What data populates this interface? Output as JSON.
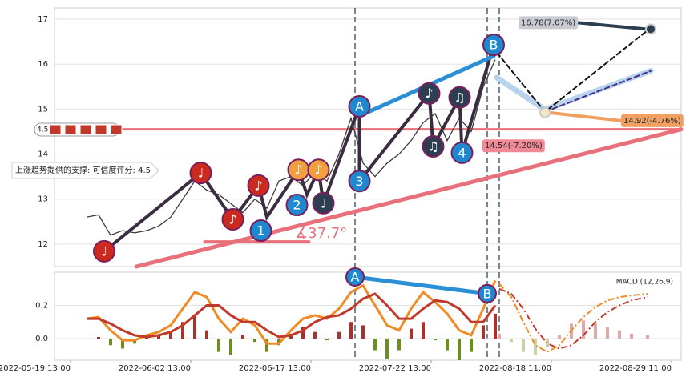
{
  "chart_data": [
    {
      "type": "line",
      "x": [
        4,
        7,
        10,
        13,
        16,
        19,
        22,
        25,
        28,
        31,
        34,
        37,
        40,
        43,
        46,
        49,
        52,
        55,
        58,
        61,
        64,
        67,
        70,
        73,
        76,
        79,
        82,
        85,
        88,
        91,
        94,
        97,
        100,
        103,
        106
      ],
      "values": [
        12.6,
        12.65,
        12.2,
        12.3,
        12.25,
        12.3,
        12.4,
        12.6,
        13.0,
        13.4,
        13.2,
        13.1,
        12.9,
        12.7,
        13.0,
        12.8,
        13.4,
        13.5,
        13.3,
        13.6,
        13.4,
        14.0,
        14.8,
        13.8,
        13.5,
        13.8,
        14.0,
        14.3,
        14.7,
        14.9,
        14.3,
        14.8,
        14.5,
        15.5,
        16.1
      ],
      "color": "#3a3a3a",
      "xlim": [
        -4,
        152.4
      ],
      "ylim": [
        11.5,
        17.25
      ],
      "yticks": [
        12,
        13,
        14,
        15,
        16,
        17
      ],
      "grid": true,
      "hlines": [
        {
          "y": 14.55,
          "color": "#e8707a"
        }
      ],
      "vlines": [
        71,
        104,
        107
      ],
      "trendlines": [
        {
          "x": [
            16.4,
            152.4
          ],
          "y": [
            11.5,
            14.55
          ],
          "color": "#e8707a",
          "width": 5
        },
        {
          "x": [
            33.5,
            59.5
          ],
          "y": [
            12.05,
            12.05
          ],
          "color": "#e8707a",
          "width": 4
        },
        {
          "x": [
            106.4,
            118.4,
            144.8
          ],
          "y": [
            15.7,
            14.99,
            15.85
          ],
          "color": "#b8d3ee",
          "width": 7
        },
        {
          "x": [
            8.4,
            32.5,
            40.5,
            46.9,
            49,
            56.9,
            59,
            61.9,
            63.1,
            72.1,
            72.1,
            89.5,
            90.5,
            97.1,
            97.7,
            105.6
          ],
          "y": [
            11.84,
            13.58,
            12.55,
            13.3,
            12.6,
            13.65,
            13.1,
            13.65,
            12.91,
            15.06,
            13.4,
            15.35,
            14.17,
            15.26,
            14.03,
            16.43
          ],
          "color": "#3a2d40",
          "width": 4
        },
        {
          "x": [
            72.1,
            105.6
          ],
          "y": [
            14.85,
            16.18
          ],
          "color": "#2b8fd6",
          "width": 5
        },
        {
          "x": [
            106.4,
            118.4,
            144.4
          ],
          "y": [
            16.26,
            14.94,
            16.78
          ],
          "color": "#111111",
          "width": 2,
          "dash": true
        },
        {
          "x": [
            118.4,
            144.8
          ],
          "y": [
            14.94,
            15.85
          ],
          "color": "#4b2c8a",
          "width": 2,
          "dash": true
        }
      ],
      "markers": [
        {
          "label": "♩",
          "x": 8.4,
          "y": 11.84,
          "color": "#cc2a1f"
        },
        {
          "label": "♩",
          "x": 32.5,
          "y": 13.58,
          "color": "#cc2a1f"
        },
        {
          "label": "♪",
          "x": 40.5,
          "y": 12.55,
          "color": "#cc2a1f"
        },
        {
          "label": "♪",
          "x": 46.9,
          "y": 13.3,
          "color": "#cc2a1f"
        },
        {
          "label": "♪",
          "x": 56.9,
          "y": 13.65,
          "color": "#f0a040"
        },
        {
          "label": "♪",
          "x": 61.9,
          "y": 13.65,
          "color": "#f0a040"
        },
        {
          "label": "♩",
          "x": 63.1,
          "y": 12.91,
          "color": "#2c3e50"
        },
        {
          "label": "♪",
          "x": 89.5,
          "y": 15.35,
          "color": "#2c3e50"
        },
        {
          "label": "♫",
          "x": 90.5,
          "y": 14.17,
          "color": "#2c3e50"
        },
        {
          "label": "♫",
          "x": 97.1,
          "y": 15.26,
          "color": "#2c3e50"
        },
        {
          "label": "1",
          "x": 47.5,
          "y": 12.3,
          "color": "#1e88d0"
        },
        {
          "label": "2",
          "x": 56.5,
          "y": 12.87,
          "color": "#1e88d0"
        },
        {
          "label": "3",
          "x": 72.1,
          "y": 13.4,
          "color": "#1e88d0"
        },
        {
          "label": "4",
          "x": 97.7,
          "y": 14.03,
          "color": "#1e88d0"
        },
        {
          "label": "A",
          "x": 72.1,
          "y": 15.06,
          "color": "#1e88d0"
        },
        {
          "label": "B",
          "x": 105.6,
          "y": 16.43,
          "color": "#1e88d0"
        }
      ],
      "projections": [
        {
          "x": 144.8,
          "value": 16.78,
          "label": "16.78(7.07%)",
          "color": "#2c3e50",
          "box": "#c8ccd2"
        },
        {
          "x": 118.4,
          "value": 14.92,
          "label": "14.92(-4.76%)",
          "color": "#f0a060",
          "box": "#f0a060"
        }
      ],
      "support_point": {
        "x": 106,
        "value": 14.54,
        "label": "14.54(-7.20%)",
        "box": "#f08a96"
      },
      "angle_label": "∡37.7°",
      "support_text": "上涨趋势提供的支撑: 可信度评分: 4.5",
      "score": 4.5
    },
    {
      "type": "macd",
      "title": "MACD (12,26,9)",
      "x": [
        4,
        7,
        10,
        13,
        16,
        19,
        22,
        25,
        28,
        31,
        34,
        37,
        40,
        43,
        46,
        49,
        52,
        55,
        58,
        61,
        64,
        67,
        70,
        73,
        76,
        79,
        82,
        85,
        88,
        91,
        94,
        97,
        100,
        103,
        106
      ],
      "series": [
        {
          "color": "#f08a24",
          "values": [
            0.12,
            0.13,
            0.05,
            -0.01,
            -0.01,
            0.02,
            0.04,
            0.08,
            0.18,
            0.28,
            0.25,
            0.12,
            0.04,
            0.12,
            0.08,
            -0.03,
            -0.03,
            0.05,
            0.12,
            0.14,
            0.12,
            0.18,
            0.28,
            0.32,
            0.2,
            0.08,
            0.05,
            0.18,
            0.28,
            0.22,
            0.15,
            0.05,
            0.02,
            0.18,
            0.35
          ]
        },
        {
          "color": "#c0392b",
          "values": [
            0.12,
            0.12,
            0.09,
            0.05,
            0.02,
            0.01,
            0.02,
            0.04,
            0.08,
            0.14,
            0.2,
            0.2,
            0.14,
            0.1,
            0.1,
            0.05,
            0.01,
            0.02,
            0.05,
            0.1,
            0.13,
            0.14,
            0.18,
            0.24,
            0.27,
            0.2,
            0.12,
            0.12,
            0.18,
            0.23,
            0.22,
            0.18,
            0.1,
            0.1,
            0.2
          ]
        }
      ],
      "bars": [
        0,
        0.01,
        -0.04,
        -0.06,
        -0.03,
        0.01,
        0.02,
        0.04,
        0.1,
        0.14,
        0.05,
        -0.08,
        -0.1,
        0.02,
        -0.02,
        -0.08,
        -0.04,
        0.03,
        0.07,
        0.04,
        -0.01,
        0.04,
        0.1,
        0.08,
        -0.07,
        -0.12,
        -0.07,
        0.06,
        0.1,
        -0.01,
        -0.07,
        -0.13,
        -0.08,
        0.08,
        0.15
      ],
      "up_color": "#a8322c",
      "down_color": "#6b8e23",
      "forecast": {
        "x": [
          107,
          110,
          113,
          116,
          119,
          122,
          125,
          128,
          131,
          134,
          137,
          140,
          144
        ],
        "series": [
          {
            "color": "#f08a24",
            "values": [
              0.33,
              0.25,
              0.1,
              -0.04,
              -0.08,
              -0.04,
              0.05,
              0.13,
              0.19,
              0.23,
              0.25,
              0.26,
              0.27
            ]
          },
          {
            "color": "#c0392b",
            "values": [
              0.3,
              0.27,
              0.18,
              0.06,
              -0.03,
              -0.06,
              -0.04,
              0.02,
              0.1,
              0.16,
              0.2,
              0.23,
              0.25
            ]
          }
        ],
        "bars": [
          0.03,
          -0.02,
          -0.08,
          -0.1,
          -0.05,
          0.02,
          0.09,
          0.11,
          0.09,
          0.07,
          0.05,
          0.03,
          0.02
        ],
        "up_color": "#e0a8a8",
        "down_color": "#c4d4a8"
      },
      "markers": [
        {
          "label": "A",
          "x": 71,
          "y": 0.371,
          "color": "#1e88d0"
        },
        {
          "label": "B",
          "x": 104,
          "y": 0.271,
          "color": "#1e88d0"
        }
      ],
      "xlim": [
        -4,
        152.4
      ],
      "ylim": [
        -0.13,
        0.4
      ],
      "yticks": [
        {
          "value": 0,
          "label": "0.0"
        },
        0.2
      ],
      "xticks": [
        {
          "value": 0,
          "label": "2022-05-19 13:00"
        },
        {
          "value": 30,
          "label": "2022-06-02 13:00"
        },
        {
          "value": 60,
          "label": "2022-06-17 13:00"
        },
        {
          "value": 90,
          "label": "2022-07-22 13:00"
        },
        {
          "value": 120,
          "label": "2022-08-18 11:00"
        },
        {
          "value": 150,
          "label": "2022-08-29 11:00"
        }
      ],
      "grid": true
    }
  ]
}
